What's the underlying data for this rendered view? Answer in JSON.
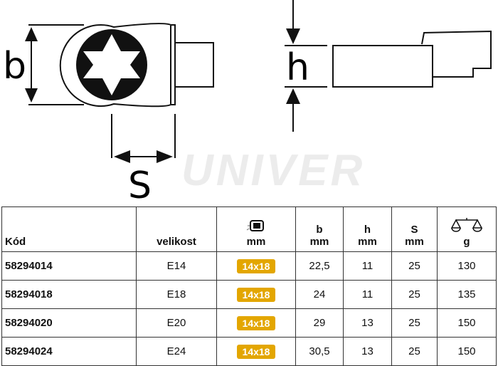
{
  "drawing": {
    "labels": {
      "b": "b",
      "h": "h",
      "s": "S"
    }
  },
  "watermark": "UNIVER",
  "table": {
    "headers": {
      "code": "Kód",
      "size": "velikost",
      "square_unit": "mm",
      "square_icon": "square-drive-icon",
      "b": "b",
      "b_unit": "mm",
      "h": "h",
      "h_unit": "mm",
      "s": "S",
      "s_unit": "mm",
      "weight_icon": "scale-icon",
      "weight_unit": "g"
    },
    "badge_color": "#e3a600",
    "rows": [
      {
        "code": "58294014",
        "size": "E14",
        "square": "14x18",
        "b": "22,5",
        "h": "11",
        "s": "25",
        "g": "130"
      },
      {
        "code": "58294018",
        "size": "E18",
        "square": "14x18",
        "b": "24",
        "h": "11",
        "s": "25",
        "g": "135"
      },
      {
        "code": "58294020",
        "size": "E20",
        "square": "14x18",
        "b": "29",
        "h": "13",
        "s": "25",
        "g": "150"
      },
      {
        "code": "58294024",
        "size": "E24",
        "square": "14x18",
        "b": "30,5",
        "h": "13",
        "s": "25",
        "g": "150"
      }
    ]
  }
}
